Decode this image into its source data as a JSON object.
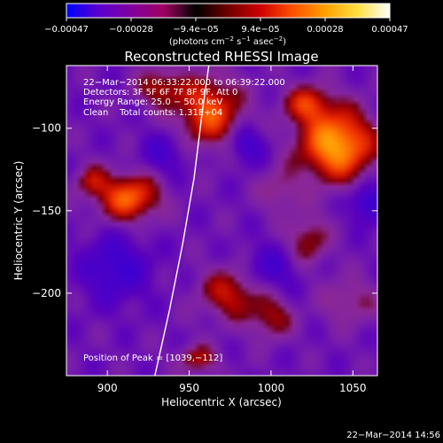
{
  "chart_data": {
    "type": "heatmap",
    "title": "Reconstructed RHESSI Image",
    "xlabel": "Heliocentric X (arcsec)",
    "ylabel": "Heliocentric Y (arcsec)",
    "xlim": [
      875,
      1065
    ],
    "ylim": [
      -250,
      -62
    ],
    "xticks": [
      900,
      950,
      1000,
      1050
    ],
    "yticks": [
      -100,
      -150,
      -200
    ],
    "xtick_labels": [
      "900",
      "950",
      "1000",
      "1050"
    ],
    "ytick_labels": [
      "−100",
      "−150",
      "−200"
    ],
    "colorbar": {
      "range": [
        -0.00047,
        0.00047
      ],
      "tick_labels": [
        "−0.00047",
        "−0.00028",
        "−9.4e−05",
        "9.4e−05",
        "0.00028",
        "0.00047"
      ],
      "unit_parts": [
        "(photons cm",
        "−2",
        " s",
        "−1",
        " asec",
        "−2",
        ")"
      ],
      "colors": [
        "#0000ff",
        "#5a00cc",
        "#8000a0",
        "#a00060",
        "#000000",
        "#700000",
        "#d00000",
        "#ff5000",
        "#ffa000",
        "#ffe040",
        "#ffffff"
      ]
    },
    "info_lines": [
      "22−Mar−2014 06:33:22.000 to 06:39:22.000",
      "Detectors: 3F 5F 6F 7F 8F 9F, Att 0",
      "Energy Range: 25.0 − 50.0 keV",
      "Clean    Total counts: 1.31E+04"
    ],
    "peak_text": "Position of Peak = [1039,−112]",
    "peak_position": [
      1039,
      -112
    ],
    "limb_curve": [
      [
        962,
        -62
      ],
      [
        958,
        -90
      ],
      [
        953,
        -130
      ],
      [
        946,
        -170
      ],
      [
        938,
        -210
      ],
      [
        929,
        -250
      ]
    ],
    "sources": [
      {
        "x": 1040,
        "y": -110,
        "sx": 16,
        "sy": 15,
        "amp": 1.0
      },
      {
        "x": 1022,
        "y": -85,
        "sx": 10,
        "sy": 8,
        "amp": 0.55
      },
      {
        "x": 962,
        "y": -90,
        "sx": 14,
        "sy": 15,
        "amp": 0.72
      },
      {
        "x": 932,
        "y": -75,
        "sx": 10,
        "sy": 8,
        "amp": 0.45
      },
      {
        "x": 913,
        "y": -142,
        "sx": 13,
        "sy": 10,
        "amp": 0.78
      },
      {
        "x": 890,
        "y": -132,
        "sx": 7,
        "sy": 7,
        "amp": 0.38
      },
      {
        "x": 975,
        "y": -200,
        "sx": 13,
        "sy": 11,
        "amp": 0.52
      },
      {
        "x": 1000,
        "y": -215,
        "sx": 9,
        "sy": 9,
        "amp": 0.42
      },
      {
        "x": 1022,
        "y": -168,
        "sx": 9,
        "sy": 11,
        "amp": 0.42
      },
      {
        "x": 1048,
        "y": -205,
        "sx": 12,
        "sy": 10,
        "amp": 0.32
      },
      {
        "x": 955,
        "y": -240,
        "sx": 9,
        "sy": 6,
        "amp": 0.42
      },
      {
        "x": 1005,
        "y": -138,
        "sx": 9,
        "sy": 9,
        "amp": 0.3
      },
      {
        "x": 985,
        "y": -110,
        "sx": 8,
        "sy": 8,
        "amp": -0.4
      },
      {
        "x": 905,
        "y": -185,
        "sx": 14,
        "sy": 14,
        "amp": -0.42
      },
      {
        "x": 1060,
        "y": -145,
        "sx": 8,
        "sy": 8,
        "amp": -0.5
      },
      {
        "x": 1000,
        "y": -185,
        "sx": 12,
        "sy": 10,
        "amp": -0.32
      },
      {
        "x": 935,
        "y": -115,
        "sx": 10,
        "sy": 9,
        "amp": -0.3
      }
    ]
  },
  "footer": {
    "timestamp": "22−Mar−2014 14:56"
  }
}
